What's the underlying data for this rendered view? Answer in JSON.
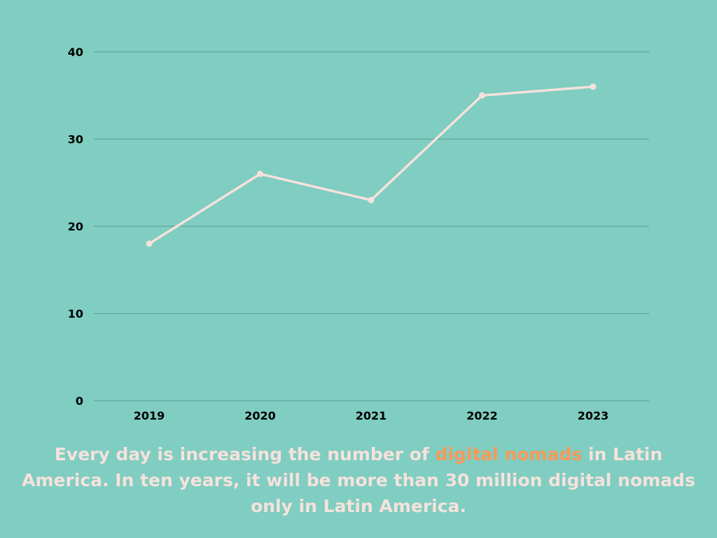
{
  "colors": {
    "background": "#80cdc1",
    "line": "#f6e2dc",
    "grid": "#5e9c92",
    "highlight": "#f79a59",
    "caption": "#f6e2dc"
  },
  "chart_data": {
    "type": "line",
    "categories": [
      "2019",
      "2020",
      "2021",
      "2022",
      "2023"
    ],
    "series": [
      {
        "values": [
          18,
          26,
          23,
          35,
          36
        ]
      }
    ],
    "title": "",
    "xlabel": "",
    "ylabel": "",
    "ylim": [
      0,
      40
    ],
    "yticks": [
      "0",
      "10",
      "20",
      "30",
      "40"
    ],
    "grid": true,
    "legend": "none"
  },
  "caption": {
    "before": "Every day is increasing the number of ",
    "highlight": "digital nomads",
    "after": " in Latin America. In ten years, it will be more than 30 million digital nomads only in Latin America."
  }
}
